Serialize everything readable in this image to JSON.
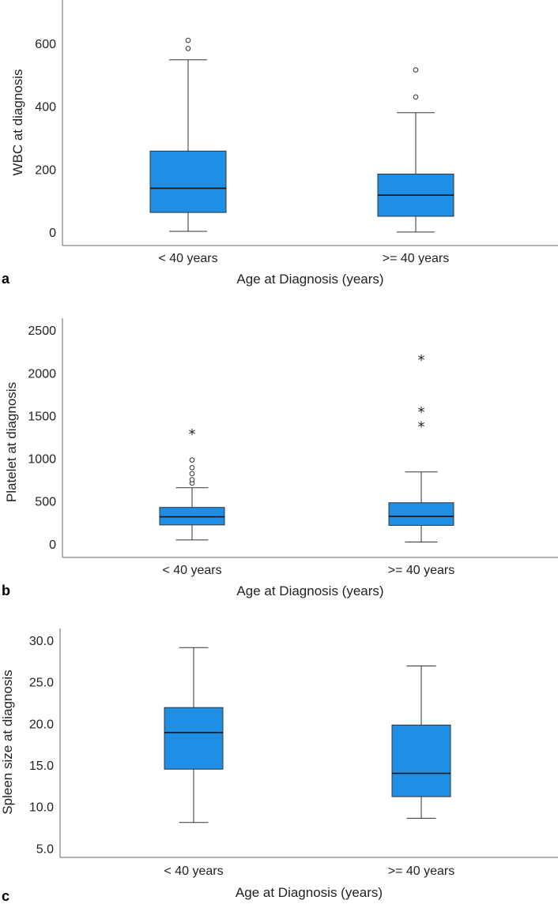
{
  "chart_data": [
    {
      "type": "box",
      "panel_label": "a",
      "xlabel": "Age at Diagnosis (years)",
      "ylabel": "WBC at diagnosis",
      "ylim": [
        -40,
        740
      ],
      "yticks": [
        "0",
        "200",
        "400",
        "600"
      ],
      "ytick_values": [
        0,
        200,
        400,
        600
      ],
      "categories": [
        "< 40 years",
        ">= 40 years"
      ],
      "boxes": [
        {
          "min": 5,
          "q1": 65,
          "median": 142,
          "q3": 260,
          "max": 550,
          "outliers": [
            586,
            612
          ],
          "extremes": []
        },
        {
          "min": 3,
          "q1": 53,
          "median": 120,
          "q3": 187,
          "max": 382,
          "outliers": [
            432,
            518
          ],
          "extremes": []
        }
      ]
    },
    {
      "type": "box",
      "panel_label": "b",
      "xlabel": "Age at Diagnosis (years)",
      "ylabel": "Platelet at diagnosis",
      "ylim": [
        -150,
        2650
      ],
      "yticks": [
        "0",
        "500",
        "1000",
        "1500",
        "2000",
        "2500"
      ],
      "ytick_values": [
        0,
        500,
        1000,
        1500,
        2000,
        2500
      ],
      "categories": [
        "< 40 years",
        ">= 40 years"
      ],
      "boxes": [
        {
          "min": 55,
          "q1": 230,
          "median": 325,
          "q3": 435,
          "max": 665,
          "outliers": [
            720,
            760,
            830,
            900,
            990
          ],
          "extremes": [
            1300
          ]
        },
        {
          "min": 30,
          "q1": 225,
          "median": 330,
          "q3": 490,
          "max": 850,
          "outliers": [],
          "extremes": [
            1390,
            1560,
            2170
          ]
        }
      ]
    },
    {
      "type": "box",
      "panel_label": "c",
      "xlabel": "Age at Diagnosis (years)",
      "ylabel": "Spleen size at diagnosis",
      "ylim": [
        4.0,
        31.5
      ],
      "yticks": [
        "5.0",
        "10.0",
        "15.0",
        "20.0",
        "25.0",
        "30.0"
      ],
      "ytick_values": [
        5,
        10,
        15,
        20,
        25,
        30
      ],
      "categories": [
        "< 40 years",
        ">= 40 years"
      ],
      "boxes": [
        {
          "min": 8.2,
          "q1": 14.6,
          "median": 19.0,
          "q3": 22.0,
          "max": 29.2,
          "outliers": [],
          "extremes": []
        },
        {
          "min": 8.7,
          "q1": 11.3,
          "median": 14.1,
          "q3": 19.9,
          "max": 27.0,
          "outliers": [],
          "extremes": []
        }
      ]
    }
  ],
  "colors": {
    "box_fill": "#1f8fe5",
    "line": "#333333",
    "axis": "#666666",
    "text": "#222222"
  }
}
